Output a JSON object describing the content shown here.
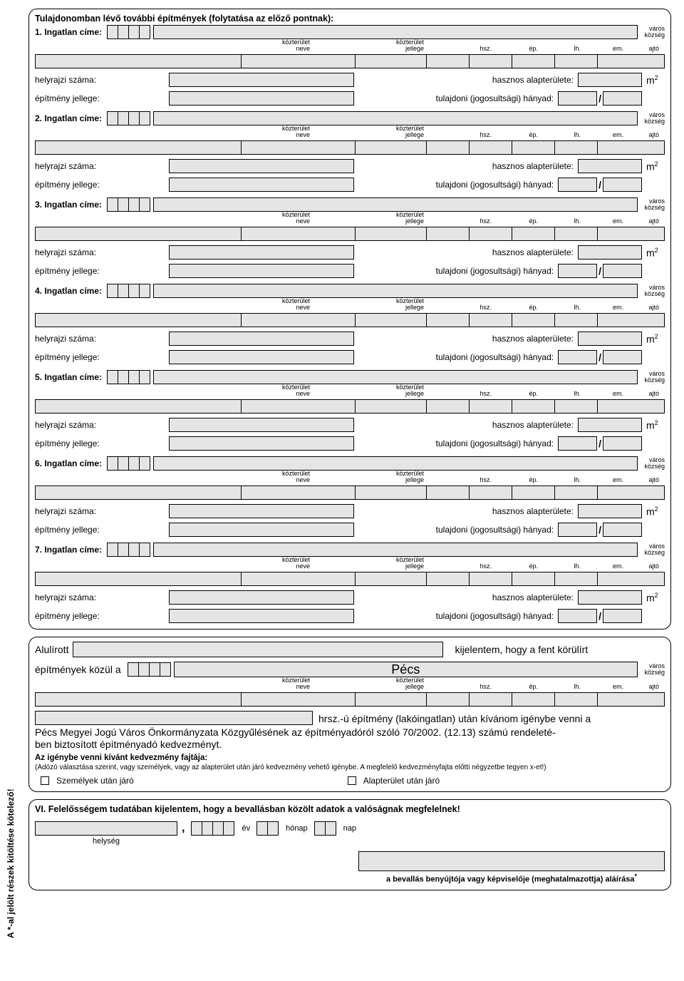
{
  "sidenote": "A *-al jelölt részek kitöltése kötelező!",
  "section_top": {
    "title": "Tulajdonomban lévő további építmények (folytatása az előző pontnak):",
    "city_top": "város",
    "city_bottom": "község",
    "street_labels": {
      "spacer": "",
      "kozt_neve_1": "közterület",
      "kozt_neve_2": "neve",
      "kozt_jel_1": "közterület",
      "kozt_jel_2": "jellege",
      "hsz": "hsz.",
      "ep": "ép.",
      "lh": "lh.",
      "em": "em.",
      "ajto": "ajtó"
    },
    "row3": {
      "helyrajzi": "helyrajzi száma:",
      "hasznos": "hasznos alapterülete:",
      "m2": "m",
      "epitmeny": "építmény jellege:",
      "tulajdoni": "tulajdoni (jogosultsági) hányad:",
      "slash": "/"
    },
    "properties": [
      {
        "label": "1. Ingatlan címe:"
      },
      {
        "label": "2. Ingatlan címe:"
      },
      {
        "label": "3. Ingatlan címe:"
      },
      {
        "label": "4. Ingatlan címe:"
      },
      {
        "label": "5. Ingatlan címe:"
      },
      {
        "label": "6. Ingatlan címe:"
      },
      {
        "label": "7. Ingatlan címe:"
      }
    ]
  },
  "declaration": {
    "alulirott": "Alulírott",
    "kijelentem": "kijelentem, hogy a fent körülírt",
    "epitmenyek": "építmények közül a",
    "pecs": "Pécs",
    "hrsz_after": "hrsz.-ú építmény (lakóingatlan) után kívánom igénybe venni a",
    "body": "Pécs Megyei Jogú Város Önkormányzata Közgyűlésének az építményadóról szóló 70/2002. (12.13) számú rendeleté-\nben biztosított építményadó kedvezményt.",
    "sub_bold": "Az igénybe venni kívánt kedvezmény fajtája:",
    "sub_note": "(Adózó választása szerint, vagy személyek, vagy az alapterület után járó kedvezmény vehető igénybe. A megfelelő kedvezményfajta előtti négyzetbe tegyen x-et!)",
    "opt1": "Személyek után járó",
    "opt2": "Alapterület után járó"
  },
  "signature": {
    "title": "VI. Felelősségem tudatában kijelentem, hogy a bevallásban közölt adatok a valóságnak megfelelnek!",
    "comma": ",",
    "ev": "év",
    "honap": "hónap",
    "nap": "nap",
    "helyseg": "helység",
    "sig_caption": "a bevallás benyújtója vagy képviselője (meghatalmazottja) aláírása",
    "star": "*"
  },
  "colors": {
    "fill": "#e5e5e5",
    "border": "#000000"
  }
}
